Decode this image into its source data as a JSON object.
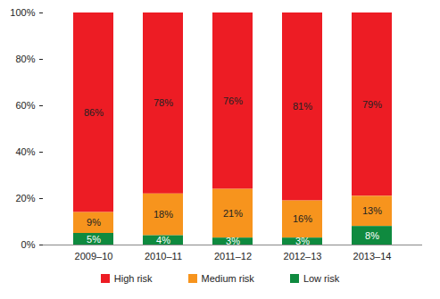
{
  "chart_data": {
    "type": "bar",
    "stacked": true,
    "data_labels": true,
    "legend": "bottom",
    "grid": false,
    "categories": [
      "2009–10",
      "2010–11",
      "2011–12",
      "2012–13",
      "2013–14"
    ],
    "series": [
      {
        "name": "High risk",
        "color": "#ed1c24",
        "values": [
          86,
          78,
          76,
          81,
          79
        ],
        "value_labels": [
          "86%",
          "78%",
          "76%",
          "81%",
          "79%"
        ]
      },
      {
        "name": "Medium risk",
        "color": "#f7941d",
        "values": [
          9,
          18,
          21,
          16,
          13
        ],
        "value_labels": [
          "9%",
          "18%",
          "21%",
          "16%",
          "13%"
        ]
      },
      {
        "name": "Low risk",
        "color": "#0f8a3f",
        "values": [
          5,
          4,
          3,
          3,
          8
        ],
        "value_labels": [
          "5%",
          "4%",
          "3%",
          "3%",
          "8%"
        ]
      }
    ],
    "ylim": [
      0,
      100
    ],
    "yticks": [
      {
        "value": 0,
        "label": "0%"
      },
      {
        "value": 20,
        "label": "20%"
      },
      {
        "value": 40,
        "label": "40%"
      },
      {
        "value": 60,
        "label": "60%"
      },
      {
        "value": 80,
        "label": "80%"
      },
      {
        "value": 100,
        "label": "100%"
      }
    ]
  }
}
